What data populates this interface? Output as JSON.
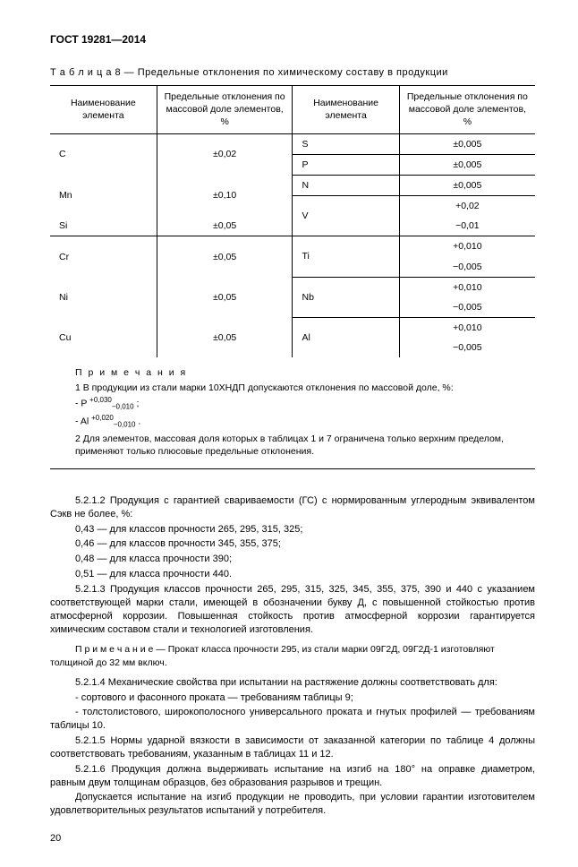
{
  "header": "ГОСТ 19281—2014",
  "tableCaption": "Т а б л и ц а   8 — Предельные отклонения по химическому составу в продукции",
  "tableHeaders": {
    "h1": "Наименование элемента",
    "h2": "Предельные отклонения по массовой доле элементов, %",
    "h3": "Наименование элемента",
    "h4": "Предельные отклонения по массовой доле элементов, %"
  },
  "leftRows": [
    {
      "el": "C",
      "dev": "±0,02",
      "span": 2
    },
    {
      "el": "Mn",
      "dev": "±0,10",
      "span": 2
    },
    {
      "el": "Si",
      "dev": "±0,05",
      "span": 1
    },
    {
      "el": "Cr",
      "dev": "±0,05",
      "span": 2
    },
    {
      "el": "Ni",
      "dev": "±0,05",
      "span": 2
    },
    {
      "el": "Cu",
      "dev": "±0,05",
      "span": 2
    }
  ],
  "rightRows": [
    {
      "el": "S",
      "lines": [
        "±0,005"
      ]
    },
    {
      "el": "P",
      "lines": [
        "±0,005"
      ]
    },
    {
      "el": "N",
      "lines": [
        "±0,005"
      ]
    },
    {
      "el": "V",
      "lines": [
        "+0,02",
        "−0,01"
      ]
    },
    {
      "el": "Ti",
      "lines": [
        "+0,010",
        "−0,005"
      ]
    },
    {
      "el": "Nb",
      "lines": [
        "+0,010",
        "−0,005"
      ]
    },
    {
      "el": "Al",
      "lines": [
        "+0,010",
        "−0,005"
      ]
    }
  ],
  "notes": {
    "title": "П р и м е ч а н и я",
    "n1": "1 В продукции из стали марки 10ХНДП допускаются отклонения по массовой доле, %:",
    "p_line": "- P",
    "p_sup": "+0,030",
    "p_sub": "−0,010",
    "al_line": "- Al",
    "al_sup": "+0,020",
    "al_sub": "−0,010",
    "n2": "2 Для элементов, массовая доля которых в таблицах 1 и 7 ограничена только верхним пределом, применяют только плюсовые предельные отклонения."
  },
  "paras": [
    "5.2.1.2 Продукция с гарантией свариваемости (ГС) с нормированным углеродным эквивалентом Cэкв не более, %:",
    "0,43 — для  классов прочности 265, 295, 315, 325;",
    "0,46 — для  классов прочности 345, 355, 375;",
    "0,48 — для  класса прочности 390;",
    "0,51 — для  класса прочности 440.",
    "5.2.1.3 Продукция классов прочности 265, 295, 315, 325, 345, 355, 375, 390 и 440 с указанием соответствующей марки стали, имеющей в обозначении букву Д,  с повышенной стойкостью против атмосферной коррозии. Повышенная стойкость против атмосферной коррозии гарантируется химическим составом стали и технологией изготовления."
  ],
  "noteLine": "П р и м е ч а н и е — Прокат класса прочности 295,  из стали  марки 09Г2Д, 09Г2Д-1 изготовляют толщиной до 32 мм включ.",
  "paras2": [
    "5.2.1.4 Механические свойства при испытании на растяжение должны соответствовать для:",
    "- сортового и фасонного проката — требованиям таблицы 9;",
    "- толстолистового, широкополосного универсального проката и гнутых профилей — требованиям таблицы 10.",
    "5.2.1.5 Нормы ударной вязкости в зависимости от заказанной категории по таблице 4 должны соответствовать требованиям, указанным в таблицах 11 и 12.",
    "5.2.1.6 Продукция должна выдерживать испытание на изгиб на 180° на оправке диаметром, равным двум толщинам образцов, без образования разрывов и трещин.",
    "Допускается испытание на изгиб продукции не проводить, при условии гарантии изготовителем удовлетворительных результатов испытаний у потребителя."
  ],
  "pageNumber": "20"
}
